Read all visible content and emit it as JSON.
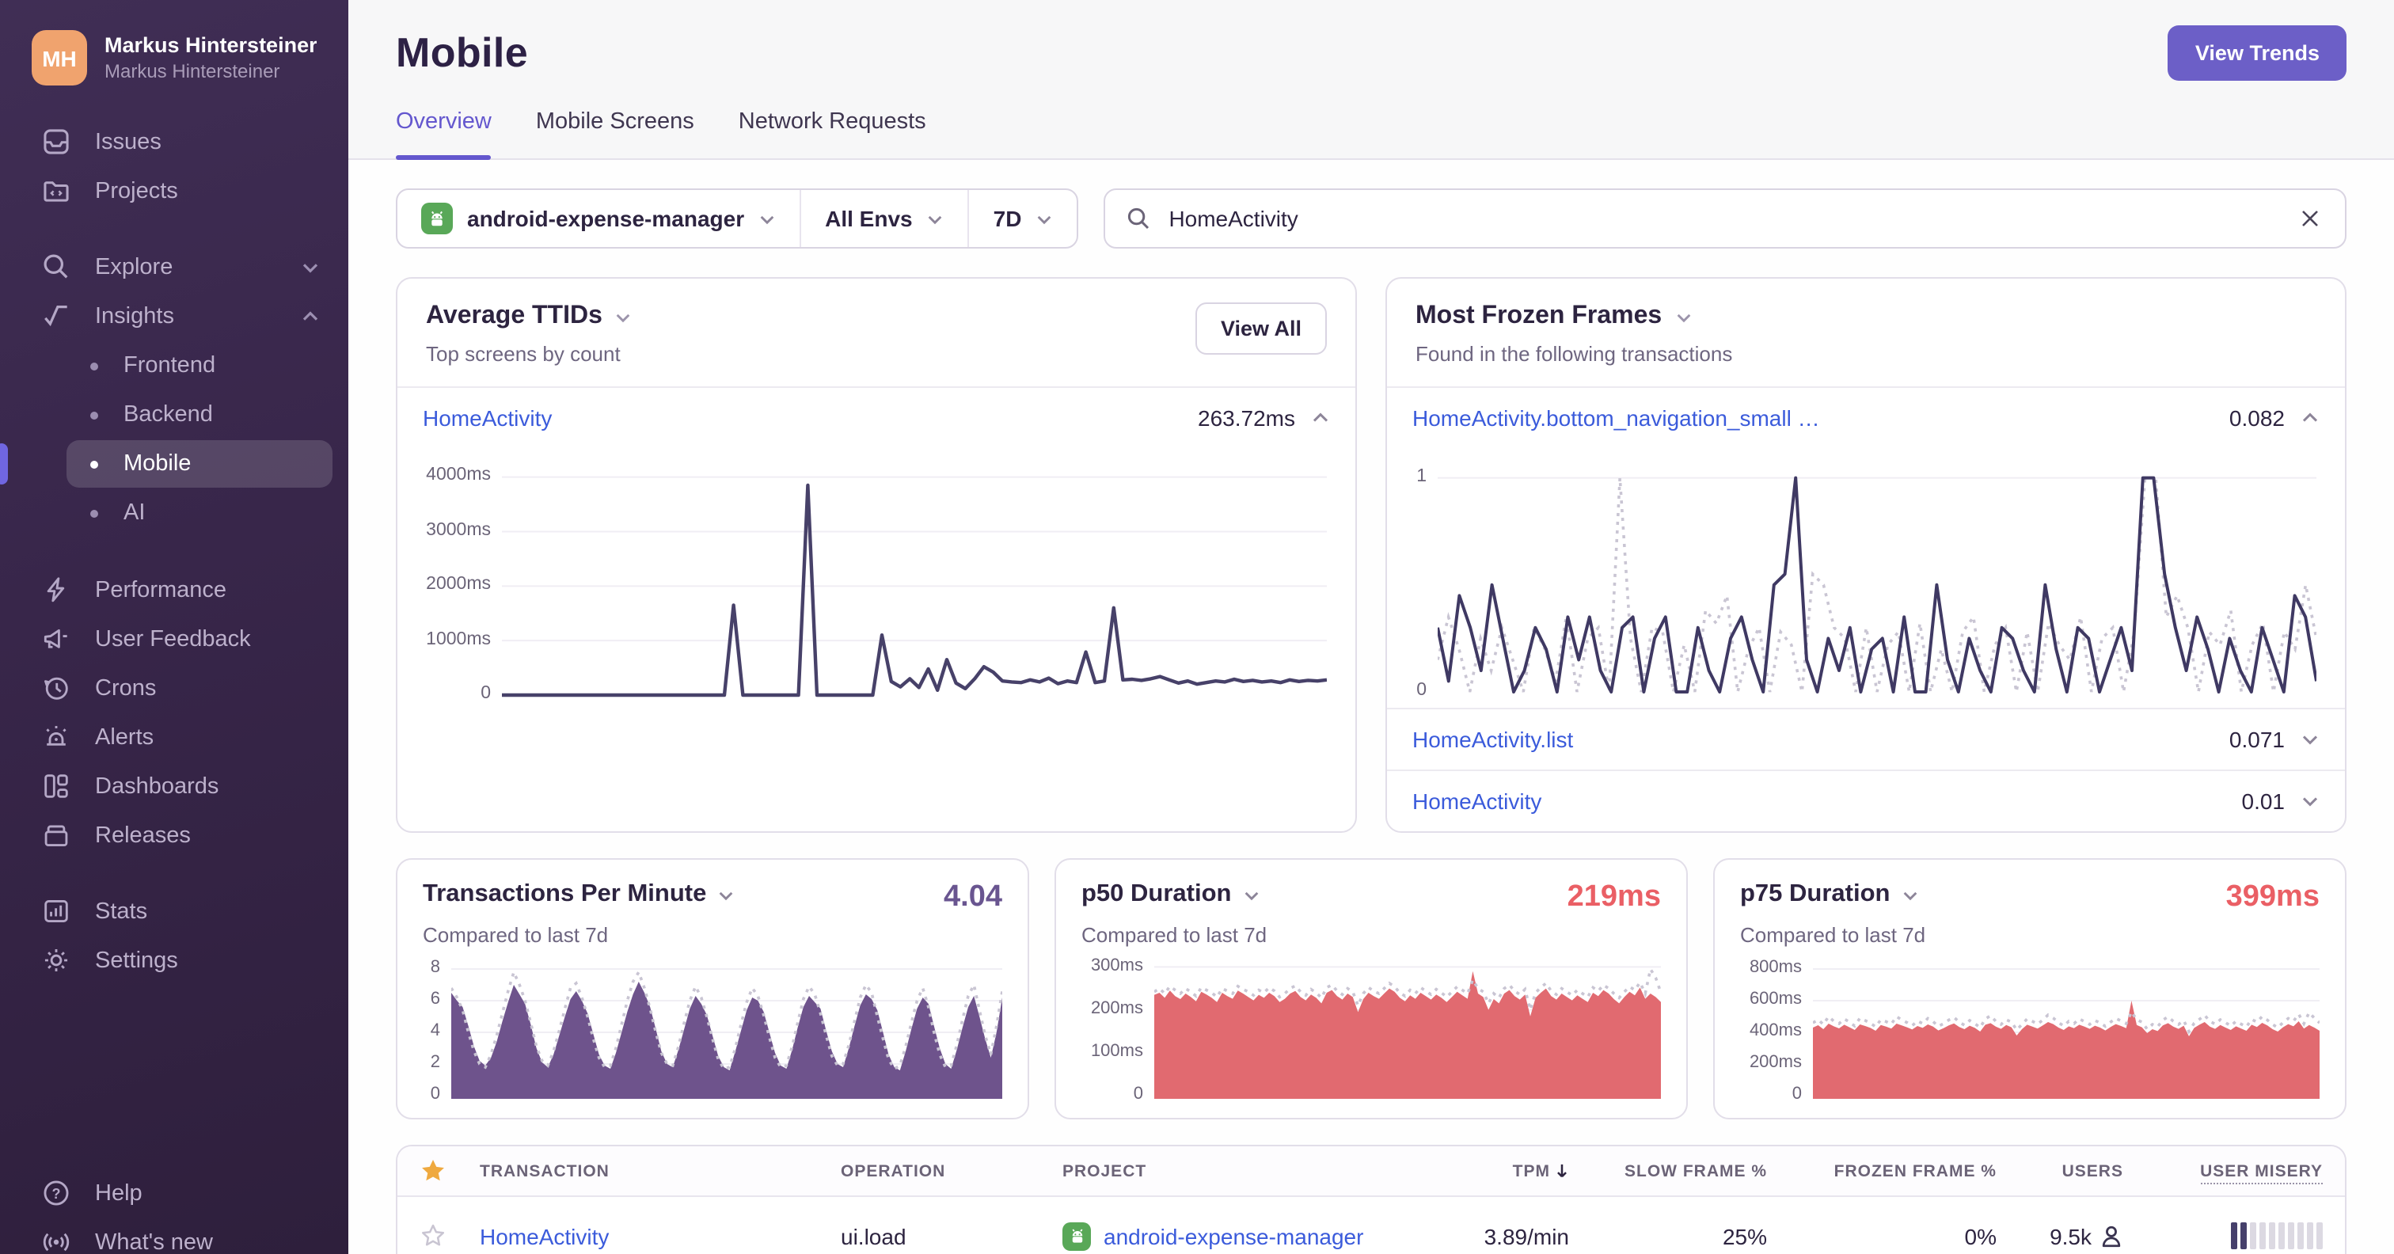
{
  "colors": {
    "accent": "#6C5FC7",
    "link_blue": "#3b5bdb",
    "sidebar_bg": "#38264a",
    "avatar_orange": "#f0a36e",
    "android_green": "#59a858",
    "star_gold": "#efa93f",
    "chart_purple": "#6e538c",
    "chart_red": "#e16a70",
    "chart_dark_line": "#474169",
    "prev_period_dotted": "#c9c5d3"
  },
  "sidebar": {
    "user": {
      "initials": "MH",
      "name": "Markus Hintersteiner",
      "subtitle": "Markus Hintersteiner"
    },
    "items_top": [
      {
        "label": "Issues"
      },
      {
        "label": "Projects"
      }
    ],
    "explore": {
      "label": "Explore"
    },
    "insights": {
      "label": "Insights",
      "children": [
        {
          "label": "Frontend"
        },
        {
          "label": "Backend"
        },
        {
          "label": "Mobile"
        },
        {
          "label": "AI"
        }
      ]
    },
    "items_mid": [
      {
        "label": "Performance"
      },
      {
        "label": "User Feedback"
      },
      {
        "label": "Crons"
      },
      {
        "label": "Alerts"
      },
      {
        "label": "Dashboards"
      },
      {
        "label": "Releases"
      }
    ],
    "items_lower": [
      {
        "label": "Stats"
      },
      {
        "label": "Settings"
      }
    ],
    "items_footer": [
      {
        "label": "Help"
      },
      {
        "label": "What's new"
      }
    ]
  },
  "header": {
    "title": "Mobile",
    "view_trends": "View Trends",
    "tabs": [
      {
        "label": "Overview"
      },
      {
        "label": "Mobile Screens"
      },
      {
        "label": "Network Requests"
      }
    ]
  },
  "filters": {
    "project": "android-expense-manager",
    "environment": "All Envs",
    "date_range": "7D",
    "search_value": "HomeActivity"
  },
  "avg_ttids": {
    "title": "Average TTIDs",
    "subtitle": "Top screens by count",
    "view_all": "View All",
    "row": {
      "label": "HomeActivity",
      "value": "263.72ms"
    }
  },
  "frozen": {
    "title": "Most Frozen Frames",
    "subtitle": "Found in the following transactions",
    "expanded_row": {
      "label": "HomeActivity.bottom_navigation_small …",
      "value": "0.082"
    },
    "rows": [
      {
        "label": "HomeActivity.list",
        "value": "0.071"
      },
      {
        "label": "HomeActivity",
        "value": "0.01"
      }
    ]
  },
  "tpm_card": {
    "title": "Transactions Per Minute",
    "subtitle": "Compared to last 7d",
    "value": "4.04"
  },
  "p50_card": {
    "title": "p50 Duration",
    "subtitle": "Compared to last 7d",
    "value": "219ms"
  },
  "p75_card": {
    "title": "p75 Duration",
    "subtitle": "Compared to last 7d",
    "value": "399ms"
  },
  "table": {
    "headers": [
      "TRANSACTION",
      "OPERATION",
      "PROJECT",
      "TPM",
      "SLOW FRAME %",
      "FROZEN FRAME %",
      "USERS",
      "USER MISERY"
    ],
    "sorted_by": "TPM",
    "rows": [
      {
        "transaction": "HomeActivity",
        "operation": "ui.load",
        "project": "android-expense-manager",
        "tpm": "3.89/min",
        "slow_frame": "25%",
        "frozen_frame": "0%",
        "users": "9.5k",
        "misery_filled": 2,
        "misery_total": 10
      }
    ]
  },
  "chart_data": {
    "ttid": {
      "type": "line",
      "title": "Average TTIDs - HomeActivity",
      "ylabel": "ms",
      "color": "#474169",
      "stroke": 2.2,
      "ymax": 4300,
      "tick_values": [
        4000,
        3000,
        2000,
        1000,
        0
      ],
      "tick_labels": [
        "4000ms",
        "3000ms",
        "2000ms",
        "1000ms",
        "0"
      ],
      "values": [
        0,
        0,
        0,
        0,
        0,
        0,
        0,
        0,
        0,
        0,
        0,
        0,
        0,
        0,
        0,
        0,
        0,
        0,
        0,
        0,
        0,
        0,
        0,
        0,
        0,
        1650,
        0,
        0,
        0,
        0,
        0,
        0,
        0,
        3850,
        0,
        0,
        0,
        0,
        0,
        0,
        0,
        1100,
        250,
        150,
        300,
        140,
        480,
        90,
        650,
        220,
        120,
        300,
        520,
        420,
        260,
        240,
        230,
        280,
        240,
        310,
        210,
        260,
        230,
        790,
        230,
        260,
        1600,
        280,
        290,
        270,
        300,
        340,
        280,
        220,
        260,
        200,
        230,
        260,
        240,
        290,
        250,
        270,
        240,
        260,
        230,
        280,
        250,
        270,
        260,
        280
      ]
    },
    "frozen": {
      "type": "line",
      "title": "Most Frozen Frames - HomeActivity.bottom_navigation_small",
      "ylabel": "frozen frames",
      "color": "#3f3963",
      "stroke": 2,
      "ymax": 1.08,
      "tick_values": [
        1,
        0
      ],
      "tick_labels": [
        "1",
        "0"
      ],
      "values": [
        0.3,
        0.05,
        0.45,
        0.3,
        0.1,
        0.5,
        0.25,
        0,
        0.1,
        0.3,
        0.2,
        0,
        0.35,
        0.15,
        0.35,
        0.1,
        0,
        0.3,
        0.35,
        0,
        0.25,
        0.35,
        0,
        0,
        0.3,
        0.1,
        0,
        0.25,
        0.35,
        0.15,
        0,
        0.5,
        0.55,
        1.0,
        0.15,
        0,
        0.25,
        0.1,
        0.3,
        0,
        0.2,
        0.25,
        0,
        0.35,
        0,
        0,
        0.5,
        0.15,
        0,
        0.25,
        0.1,
        0,
        0.3,
        0.25,
        0.1,
        0,
        0.5,
        0.2,
        0,
        0.3,
        0.25,
        0,
        0.15,
        0.3,
        0.1,
        1.0,
        1.0,
        0.55,
        0.3,
        0.1,
        0.35,
        0.2,
        0,
        0.25,
        0.1,
        0,
        0.3,
        0.15,
        0,
        0.45,
        0.35,
        0.05
      ],
      "previous": [
        0.15,
        0.35,
        0.2,
        0,
        0.25,
        0.1,
        0.3,
        0.15,
        0,
        0.3,
        0.2,
        0.05,
        0.35,
        0,
        0.25,
        0.3,
        0,
        1.0,
        0.25,
        0,
        0.3,
        0.28,
        0,
        0.22,
        0,
        0.38,
        0.32,
        0.45,
        0,
        0.2,
        0.3,
        0,
        0.28,
        0.22,
        0,
        0.55,
        0.5,
        0.3,
        0.25,
        0,
        0.3,
        0,
        0.22,
        0.28,
        0,
        0.32,
        0,
        0.2,
        0,
        0.28,
        0.35,
        0,
        0.22,
        0.3,
        0,
        0.28,
        0,
        0.32,
        0.22,
        0.15,
        0.35,
        0,
        0.25,
        0.3,
        0,
        0.28,
        1.0,
        1.0,
        0.35,
        0.45,
        0.3,
        0,
        0.28,
        0.22,
        0.38,
        0,
        0.22,
        0.32,
        0,
        0.28,
        0.2,
        0.5,
        0.25
      ]
    },
    "tpm": {
      "type": "area",
      "title": "Transactions Per Minute",
      "ylabel": "tpm",
      "color": "#6e538c",
      "ymax": 8.4,
      "tick_values": [
        8,
        6,
        4,
        2,
        0
      ],
      "tick_labels": [
        "8",
        "6",
        "4",
        "2",
        "0"
      ],
      "values": [
        6.5,
        6.0,
        5.6,
        4.4,
        3.1,
        2.2,
        1.9,
        2.4,
        3.4,
        4.7,
        5.9,
        7.0,
        6.4,
        5.8,
        4.5,
        3.0,
        2.1,
        1.8,
        2.6,
        3.8,
        5.0,
        6.1,
        6.6,
        6.0,
        5.2,
        3.9,
        2.6,
        1.9,
        1.7,
        2.7,
        4.0,
        5.3,
        6.4,
        7.2,
        6.5,
        5.6,
        4.2,
        2.8,
        2.0,
        1.8,
        2.9,
        4.2,
        5.5,
        6.3,
        5.8,
        5.1,
        3.8,
        2.5,
        1.8,
        1.6,
        2.8,
        4.1,
        5.4,
        6.2,
        6.0,
        5.3,
        4.0,
        2.7,
        1.9,
        1.7,
        2.9,
        4.3,
        5.6,
        6.3,
        5.9,
        5.5,
        4.1,
        2.8,
        2.0,
        1.8,
        3.0,
        4.4,
        5.7,
        6.4,
        6.1,
        5.4,
        4.0,
        2.6,
        1.8,
        1.6,
        2.8,
        4.2,
        5.5,
        6.2,
        5.8,
        4.4,
        3.0,
        2.0,
        1.7,
        2.9,
        4.3,
        5.6,
        6.3,
        5.0,
        3.6,
        2.4,
        4.0,
        6.2
      ],
      "previous": [
        6.8,
        6.2,
        5.4,
        4.0,
        2.8,
        2.0,
        1.8,
        2.6,
        3.8,
        5.2,
        6.6,
        7.8,
        7.0,
        6.0,
        4.6,
        3.1,
        2.2,
        1.9,
        2.8,
        4.1,
        5.5,
        6.8,
        7.1,
        6.2,
        5.0,
        3.6,
        2.4,
        1.8,
        1.9,
        3.0,
        4.5,
        6.0,
        7.2,
        7.8,
        6.8,
        5.5,
        4.0,
        2.7,
        2.0,
        1.9,
        3.1,
        4.6,
        6.0,
        6.9,
        6.2,
        5.0,
        3.6,
        2.3,
        1.7,
        1.8,
        3.0,
        4.5,
        5.9,
        6.8,
        6.3,
        5.1,
        3.7,
        2.4,
        1.8,
        1.9,
        3.1,
        4.6,
        6.1,
        6.9,
        6.4,
        5.2,
        3.8,
        2.5,
        1.9,
        2.0,
        3.2,
        4.7,
        6.2,
        7.0,
        6.5,
        5.0,
        3.6,
        2.3,
        1.7,
        1.9,
        3.1,
        4.6,
        6.0,
        6.8,
        5.6,
        4.0,
        2.6,
        1.8,
        1.9,
        3.2,
        4.8,
        6.3,
        7.0,
        5.4,
        3.8,
        2.6,
        4.4,
        6.6
      ]
    },
    "p50": {
      "type": "area",
      "title": "p50 Duration",
      "ylabel": "ms",
      "color": "#e16a70",
      "ymax": 310,
      "tick_values": [
        300,
        200,
        100,
        0
      ],
      "tick_labels": [
        "300ms",
        "200ms",
        "100ms",
        "0"
      ],
      "values": [
        235,
        240,
        228,
        245,
        232,
        225,
        238,
        230,
        220,
        242,
        236,
        228,
        218,
        240,
        232,
        226,
        245,
        238,
        230,
        222,
        235,
        228,
        240,
        232,
        218,
        226,
        238,
        244,
        230,
        222,
        236,
        228,
        215,
        240,
        246,
        232,
        224,
        238,
        230,
        195,
        225,
        240,
        232,
        226,
        238,
        250,
        242,
        228,
        220,
        234,
        226,
        240,
        232,
        224,
        236,
        228,
        218,
        230,
        242,
        234,
        226,
        290,
        238,
        230,
        200,
        225,
        215,
        238,
        246,
        232,
        224,
        236,
        185,
        228,
        240,
        250,
        232,
        224,
        238,
        230,
        222,
        234,
        226,
        218,
        240,
        232,
        246,
        238,
        225,
        215,
        230,
        242,
        234,
        252,
        226,
        238,
        230,
        218
      ],
      "previous": [
        242,
        250,
        238,
        255,
        246,
        238,
        250,
        242,
        232,
        252,
        246,
        240,
        230,
        250,
        244,
        238,
        255,
        248,
        242,
        234,
        246,
        240,
        252,
        244,
        230,
        238,
        250,
        256,
        242,
        234,
        248,
        240,
        228,
        252,
        258,
        244,
        236,
        250,
        242,
        210,
        238,
        252,
        244,
        238,
        250,
        262,
        254,
        240,
        232,
        246,
        238,
        252,
        244,
        236,
        248,
        240,
        230,
        242,
        254,
        246,
        238,
        270,
        250,
        242,
        215,
        238,
        228,
        250,
        258,
        244,
        236,
        248,
        200,
        240,
        252,
        262,
        244,
        236,
        250,
        242,
        234,
        246,
        238,
        230,
        252,
        244,
        258,
        250,
        238,
        228,
        242,
        254,
        246,
        264,
        238,
        295,
        275,
        240
      ]
    },
    "p75": {
      "type": "area",
      "title": "p75 Duration",
      "ylabel": "ms",
      "color": "#e16a70",
      "ymax": 840,
      "tick_values": [
        800,
        600,
        400,
        200,
        0
      ],
      "tick_labels": [
        "800ms",
        "600ms",
        "400ms",
        "200ms",
        "0"
      ],
      "values": [
        430,
        445,
        420,
        455,
        438,
        425,
        448,
        432,
        415,
        450,
        440,
        428,
        410,
        446,
        436,
        424,
        455,
        444,
        432,
        418,
        440,
        428,
        450,
        436,
        412,
        426,
        444,
        456,
        434,
        420,
        442,
        428,
        405,
        448,
        458,
        436,
        422,
        446,
        432,
        380,
        420,
        448,
        436,
        424,
        444,
        465,
        452,
        430,
        415,
        438,
        426,
        448,
        436,
        422,
        442,
        430,
        412,
        434,
        452,
        440,
        426,
        600,
        446,
        432,
        395,
        420,
        408,
        444,
        458,
        436,
        422,
        442,
        375,
        428,
        448,
        465,
        436,
        422,
        446,
        430,
        415,
        438,
        424,
        410,
        448,
        434,
        460,
        444,
        420,
        405,
        432,
        452,
        438,
        470,
        424,
        446,
        430,
        410
      ],
      "previous": [
        460,
        480,
        450,
        500,
        470,
        455,
        485,
        465,
        440,
        490,
        475,
        458,
        435,
        480,
        468,
        452,
        500,
        478,
        462,
        442,
        472,
        456,
        488,
        468,
        438,
        455,
        478,
        495,
        465,
        445,
        475,
        455,
        430,
        485,
        505,
        470,
        450,
        480,
        465,
        415,
        450,
        485,
        470,
        452,
        478,
        510,
        490,
        462,
        440,
        470,
        455,
        485,
        468,
        450,
        475,
        460,
        438,
        465,
        488,
        472,
        455,
        530,
        480,
        465,
        420,
        450,
        435,
        478,
        498,
        470,
        450,
        475,
        405,
        458,
        482,
        508,
        470,
        452,
        480,
        462,
        440,
        470,
        452,
        435,
        482,
        465,
        500,
        478,
        450,
        430,
        462,
        488,
        470,
        515,
        455,
        525,
        490,
        460
      ]
    }
  }
}
